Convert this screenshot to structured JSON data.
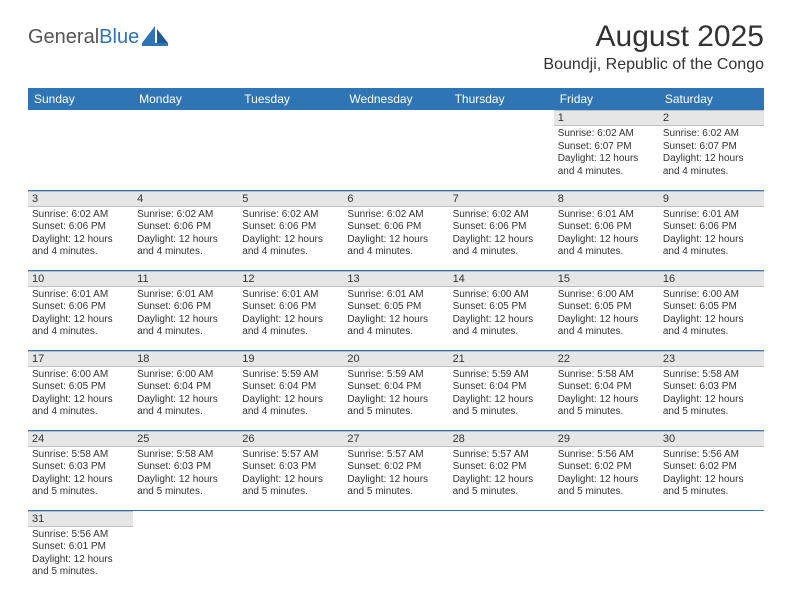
{
  "logo": {
    "word1": "General",
    "word2": "Blue"
  },
  "header": {
    "title": "August 2025",
    "location": "Boundji, Republic of the Congo"
  },
  "colors": {
    "header_bg": "#2f74b5",
    "header_text": "#ffffff",
    "daynum_bg": "#e6e6e6",
    "row_border": "#2f74b5",
    "logo_gray": "#555555",
    "logo_blue": "#2f74b5"
  },
  "weekdays": [
    "Sunday",
    "Monday",
    "Tuesday",
    "Wednesday",
    "Thursday",
    "Friday",
    "Saturday"
  ],
  "weeks": [
    [
      null,
      null,
      null,
      null,
      null,
      {
        "n": "1",
        "sr": "6:02 AM",
        "ss": "6:07 PM",
        "dl": "12 hours and 4 minutes."
      },
      {
        "n": "2",
        "sr": "6:02 AM",
        "ss": "6:07 PM",
        "dl": "12 hours and 4 minutes."
      }
    ],
    [
      {
        "n": "3",
        "sr": "6:02 AM",
        "ss": "6:06 PM",
        "dl": "12 hours and 4 minutes."
      },
      {
        "n": "4",
        "sr": "6:02 AM",
        "ss": "6:06 PM",
        "dl": "12 hours and 4 minutes."
      },
      {
        "n": "5",
        "sr": "6:02 AM",
        "ss": "6:06 PM",
        "dl": "12 hours and 4 minutes."
      },
      {
        "n": "6",
        "sr": "6:02 AM",
        "ss": "6:06 PM",
        "dl": "12 hours and 4 minutes."
      },
      {
        "n": "7",
        "sr": "6:02 AM",
        "ss": "6:06 PM",
        "dl": "12 hours and 4 minutes."
      },
      {
        "n": "8",
        "sr": "6:01 AM",
        "ss": "6:06 PM",
        "dl": "12 hours and 4 minutes."
      },
      {
        "n": "9",
        "sr": "6:01 AM",
        "ss": "6:06 PM",
        "dl": "12 hours and 4 minutes."
      }
    ],
    [
      {
        "n": "10",
        "sr": "6:01 AM",
        "ss": "6:06 PM",
        "dl": "12 hours and 4 minutes."
      },
      {
        "n": "11",
        "sr": "6:01 AM",
        "ss": "6:06 PM",
        "dl": "12 hours and 4 minutes."
      },
      {
        "n": "12",
        "sr": "6:01 AM",
        "ss": "6:06 PM",
        "dl": "12 hours and 4 minutes."
      },
      {
        "n": "13",
        "sr": "6:01 AM",
        "ss": "6:05 PM",
        "dl": "12 hours and 4 minutes."
      },
      {
        "n": "14",
        "sr": "6:00 AM",
        "ss": "6:05 PM",
        "dl": "12 hours and 4 minutes."
      },
      {
        "n": "15",
        "sr": "6:00 AM",
        "ss": "6:05 PM",
        "dl": "12 hours and 4 minutes."
      },
      {
        "n": "16",
        "sr": "6:00 AM",
        "ss": "6:05 PM",
        "dl": "12 hours and 4 minutes."
      }
    ],
    [
      {
        "n": "17",
        "sr": "6:00 AM",
        "ss": "6:05 PM",
        "dl": "12 hours and 4 minutes."
      },
      {
        "n": "18",
        "sr": "6:00 AM",
        "ss": "6:04 PM",
        "dl": "12 hours and 4 minutes."
      },
      {
        "n": "19",
        "sr": "5:59 AM",
        "ss": "6:04 PM",
        "dl": "12 hours and 4 minutes."
      },
      {
        "n": "20",
        "sr": "5:59 AM",
        "ss": "6:04 PM",
        "dl": "12 hours and 5 minutes."
      },
      {
        "n": "21",
        "sr": "5:59 AM",
        "ss": "6:04 PM",
        "dl": "12 hours and 5 minutes."
      },
      {
        "n": "22",
        "sr": "5:58 AM",
        "ss": "6:04 PM",
        "dl": "12 hours and 5 minutes."
      },
      {
        "n": "23",
        "sr": "5:58 AM",
        "ss": "6:03 PM",
        "dl": "12 hours and 5 minutes."
      }
    ],
    [
      {
        "n": "24",
        "sr": "5:58 AM",
        "ss": "6:03 PM",
        "dl": "12 hours and 5 minutes."
      },
      {
        "n": "25",
        "sr": "5:58 AM",
        "ss": "6:03 PM",
        "dl": "12 hours and 5 minutes."
      },
      {
        "n": "26",
        "sr": "5:57 AM",
        "ss": "6:03 PM",
        "dl": "12 hours and 5 minutes."
      },
      {
        "n": "27",
        "sr": "5:57 AM",
        "ss": "6:02 PM",
        "dl": "12 hours and 5 minutes."
      },
      {
        "n": "28",
        "sr": "5:57 AM",
        "ss": "6:02 PM",
        "dl": "12 hours and 5 minutes."
      },
      {
        "n": "29",
        "sr": "5:56 AM",
        "ss": "6:02 PM",
        "dl": "12 hours and 5 minutes."
      },
      {
        "n": "30",
        "sr": "5:56 AM",
        "ss": "6:02 PM",
        "dl": "12 hours and 5 minutes."
      }
    ],
    [
      {
        "n": "31",
        "sr": "5:56 AM",
        "ss": "6:01 PM",
        "dl": "12 hours and 5 minutes."
      },
      null,
      null,
      null,
      null,
      null,
      null
    ]
  ],
  "labels": {
    "sunrise": "Sunrise:",
    "sunset": "Sunset:",
    "daylight": "Daylight:"
  }
}
